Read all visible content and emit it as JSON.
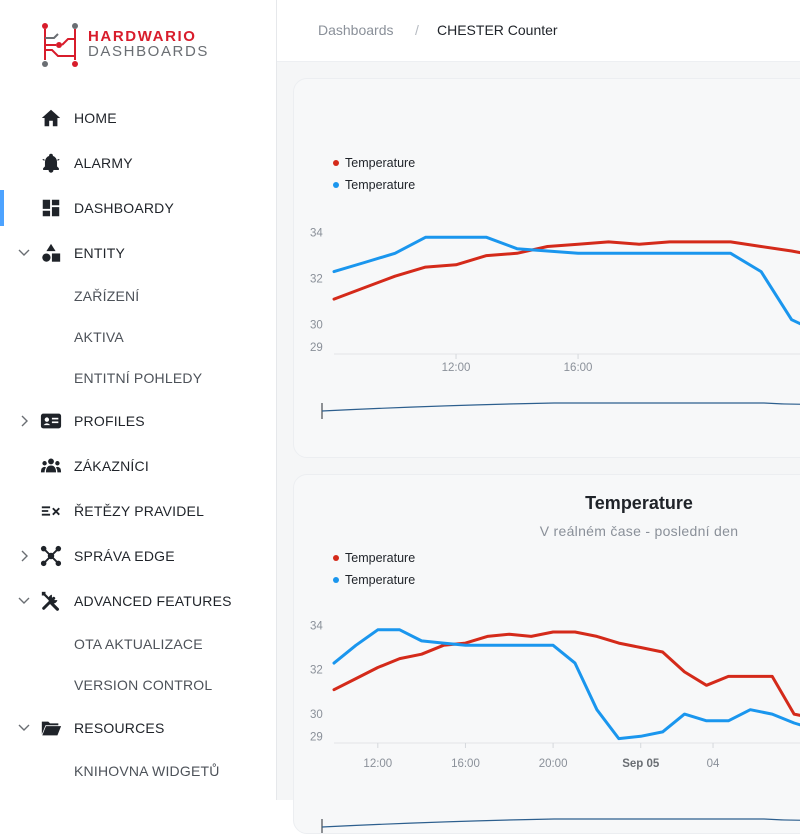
{
  "brand": {
    "line1": "HARDWARIO",
    "line2": "DASHBOARDS",
    "red": "#d81c2b",
    "gray": "#6a6e73"
  },
  "sidebar": {
    "items": [
      {
        "label": "HOME",
        "icon": "home-icon"
      },
      {
        "label": "ALARMY",
        "icon": "bell-icon"
      },
      {
        "label": "DASHBOARDY",
        "icon": "dashboard-icon",
        "active": true
      },
      {
        "label": "ENTITY",
        "icon": "shapes-icon",
        "expanded": true
      },
      {
        "label": "ZAŘÍZENÍ"
      },
      {
        "label": "AKTIVA"
      },
      {
        "label": "ENTITNÍ POHLEDY"
      },
      {
        "label": "PROFILES",
        "icon": "id-card-icon",
        "expanded": false
      },
      {
        "label": "ZÁKAZNÍCI",
        "icon": "people-icon"
      },
      {
        "label": "ŘETĚZY PRAVIDEL",
        "icon": "rule-chain-icon"
      },
      {
        "label": "SPRÁVA EDGE",
        "icon": "edge-icon",
        "expanded": false
      },
      {
        "label": "ADVANCED FEATURES",
        "icon": "tools-icon",
        "expanded": true
      },
      {
        "label": "OTA AKTUALIZACE"
      },
      {
        "label": "VERSION CONTROL"
      },
      {
        "label": "RESOURCES",
        "icon": "folder-icon",
        "expanded": true
      },
      {
        "label": "KNIHOVNA WIDGETŮ"
      }
    ]
  },
  "breadcrumb": {
    "root": "Dashboards",
    "separator": "/",
    "current": "CHESTER Counter"
  },
  "widgets": [
    {
      "title": "",
      "subtitle": "",
      "legend": [
        {
          "label": "Temperature",
          "color": "#d42a1a"
        },
        {
          "label": "Temperature",
          "color": "#1a96ee"
        }
      ]
    },
    {
      "title": "Temperature",
      "subtitle": "V reálném čase - poslední den",
      "legend": [
        {
          "label": "Temperature",
          "color": "#d42a1a"
        },
        {
          "label": "Temperature",
          "color": "#1a96ee"
        }
      ]
    }
  ],
  "chart_data": [
    {
      "type": "line",
      "yticks": [
        29,
        30,
        32,
        34
      ],
      "xticks": [
        "12:00",
        "16:00"
      ],
      "series": [
        {
          "name": "Temperature",
          "color": "#d42a1a",
          "points": [
            [
              10,
              31.1
            ],
            [
              11,
              31.6
            ],
            [
              12,
              32.1
            ],
            [
              13,
              32.5
            ],
            [
              14,
              32.6
            ],
            [
              15,
              33.0
            ],
            [
              16,
              33.1
            ],
            [
              17,
              33.4
            ],
            [
              18,
              33.5
            ],
            [
              19,
              33.6
            ],
            [
              20,
              33.5
            ],
            [
              21,
              33.6
            ],
            [
              22,
              33.6
            ],
            [
              23,
              33.6
            ],
            [
              24,
              33.4
            ],
            [
              25,
              33.2
            ],
            [
              25.8,
              33.0
            ]
          ]
        },
        {
          "name": "Temperature",
          "color": "#1a96ee",
          "points": [
            [
              10,
              32.3
            ],
            [
              11,
              32.7
            ],
            [
              12,
              33.1
            ],
            [
              13,
              33.8
            ],
            [
              14,
              33.8
            ],
            [
              15,
              33.8
            ],
            [
              16,
              33.3
            ],
            [
              17,
              33.2
            ],
            [
              18,
              33.1
            ],
            [
              19,
              33.1
            ],
            [
              20,
              33.1
            ],
            [
              21,
              33.1
            ],
            [
              22,
              33.1
            ],
            [
              23,
              33.1
            ],
            [
              24,
              32.3
            ],
            [
              25,
              30.2
            ],
            [
              25.8,
              29.7
            ]
          ]
        }
      ]
    },
    {
      "type": "line",
      "yticks": [
        29,
        30,
        32,
        34
      ],
      "xticks": [
        "12:00",
        "16:00",
        "20:00",
        "Sep 05",
        "04"
      ],
      "series": [
        {
          "name": "Temperature",
          "color": "#d42a1a",
          "points": [
            [
              10,
              31.1
            ],
            [
              11,
              31.6
            ],
            [
              12,
              32.1
            ],
            [
              13,
              32.5
            ],
            [
              14,
              32.7
            ],
            [
              15,
              33.1
            ],
            [
              16,
              33.2
            ],
            [
              17,
              33.5
            ],
            [
              18,
              33.6
            ],
            [
              19,
              33.5
            ],
            [
              20,
              33.7
            ],
            [
              21,
              33.7
            ],
            [
              22,
              33.5
            ],
            [
              23,
              33.2
            ],
            [
              24,
              33.0
            ],
            [
              25,
              32.8
            ],
            [
              26,
              31.9
            ],
            [
              27,
              31.3
            ],
            [
              28,
              31.7
            ],
            [
              29,
              31.7
            ],
            [
              30,
              31.7
            ],
            [
              31,
              30.0
            ],
            [
              32,
              29.8
            ]
          ]
        },
        {
          "name": "Temperature",
          "color": "#1a96ee",
          "points": [
            [
              10,
              32.3
            ],
            [
              11,
              33.1
            ],
            [
              12,
              33.8
            ],
            [
              13,
              33.8
            ],
            [
              14,
              33.3
            ],
            [
              15,
              33.2
            ],
            [
              16,
              33.1
            ],
            [
              17,
              33.1
            ],
            [
              18,
              33.1
            ],
            [
              19,
              33.1
            ],
            [
              20,
              33.1
            ],
            [
              21,
              32.3
            ],
            [
              22,
              30.2
            ],
            [
              23,
              28.9
            ],
            [
              24,
              29.0
            ],
            [
              25,
              29.2
            ],
            [
              26,
              30.0
            ],
            [
              27,
              29.7
            ],
            [
              28,
              29.7
            ],
            [
              29,
              30.2
            ],
            [
              30,
              30.0
            ],
            [
              31,
              29.6
            ],
            [
              32,
              29.3
            ]
          ]
        }
      ]
    }
  ]
}
